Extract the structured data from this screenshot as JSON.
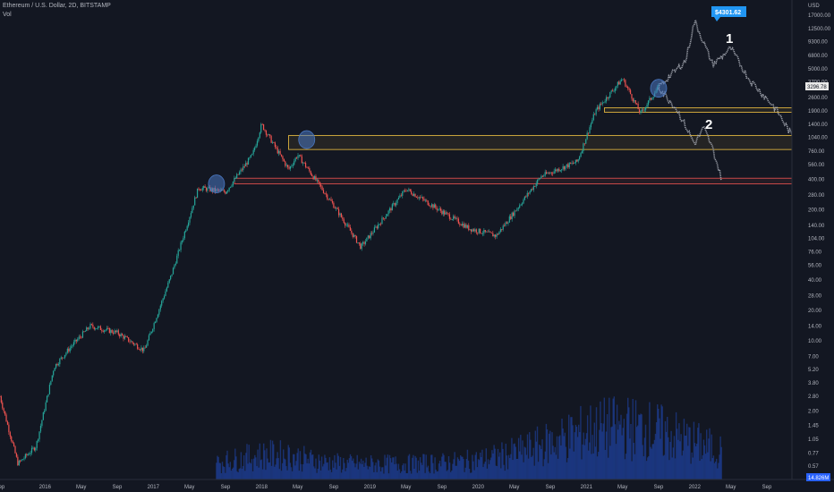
{
  "header": {
    "symbol_line": "Ethereum / U.S. Dollar, 2D, BITSTAMP",
    "indicator": "Vol"
  },
  "axis": {
    "currency": "USD",
    "y_ticks": [
      "17000.00",
      "12500.00",
      "9300.00",
      "6800.00",
      "5000.00",
      "3700.00",
      "2600.00",
      "1900.00",
      "1400.00",
      "1040.00",
      "760.00",
      "560.00",
      "400.00",
      "280.00",
      "200.00",
      "140.00",
      "104.00",
      "76.00",
      "56.00",
      "40.00",
      "28.00",
      "20.00",
      "14.00",
      "10.00",
      "7.00",
      "5.20",
      "3.80",
      "2.80",
      "2.00",
      "1.45",
      "1.05",
      "0.77",
      "0.57"
    ],
    "x_ticks": [
      "Sep",
      "2016",
      "May",
      "Sep",
      "2017",
      "May",
      "Sep",
      "2018",
      "May",
      "Sep",
      "2019",
      "May",
      "Sep",
      "2020",
      "May",
      "Sep",
      "2021",
      "May",
      "Sep",
      "2022",
      "May",
      "Sep"
    ]
  },
  "price_labels": {
    "ath": "$4301.62",
    "current": "3296.78",
    "volume": "14.826M"
  },
  "annotations": {
    "path1": "1",
    "path2": "2"
  },
  "colors": {
    "background": "#131722",
    "up": "#26a69a",
    "down": "#ef5350",
    "projection": "#b2b5be",
    "support_zone": "#f5c542",
    "resistance_zone": "#ef5350",
    "highlight": "#4a78c2",
    "label": "#2196f3"
  },
  "chart_data": {
    "type": "candlestick",
    "title": "Ethereum / U.S. Dollar, 2D, BITSTAMP",
    "scale": "log",
    "ylim": [
      0.5,
      20000
    ],
    "x": [
      "2015-08",
      "2016-01",
      "2016-05",
      "2016-09",
      "2017-01",
      "2017-05",
      "2017-09",
      "2018-01",
      "2018-05",
      "2018-09",
      "2019-01",
      "2019-05",
      "2019-09",
      "2020-01",
      "2020-05",
      "2020-09",
      "2021-01",
      "2021-05",
      "2021-09",
      "2022-01",
      "2022-05",
      "2022-09"
    ],
    "price_series": [
      {
        "date": "2015-08",
        "value": 2.8
      },
      {
        "date": "2015-10",
        "value": 0.6
      },
      {
        "date": "2015-12",
        "value": 0.9
      },
      {
        "date": "2016-02",
        "value": 5.5
      },
      {
        "date": "2016-04",
        "value": 9
      },
      {
        "date": "2016-06",
        "value": 14
      },
      {
        "date": "2016-09",
        "value": 12
      },
      {
        "date": "2016-12",
        "value": 8
      },
      {
        "date": "2017-03",
        "value": 45
      },
      {
        "date": "2017-06",
        "value": 330
      },
      {
        "date": "2017-09",
        "value": 300
      },
      {
        "date": "2017-12",
        "value": 700
      },
      {
        "date": "2018-01",
        "value": 1400
      },
      {
        "date": "2018-04",
        "value": 500
      },
      {
        "date": "2018-05",
        "value": 700
      },
      {
        "date": "2018-09",
        "value": 220
      },
      {
        "date": "2018-12",
        "value": 85
      },
      {
        "date": "2019-05",
        "value": 320
      },
      {
        "date": "2019-12",
        "value": 130
      },
      {
        "date": "2020-03",
        "value": 110
      },
      {
        "date": "2020-08",
        "value": 430
      },
      {
        "date": "2020-12",
        "value": 600
      },
      {
        "date": "2021-02",
        "value": 1900
      },
      {
        "date": "2021-05",
        "value": 4000
      },
      {
        "date": "2021-07",
        "value": 1800
      },
      {
        "date": "2021-09",
        "value": 3300
      }
    ],
    "projections": [
      {
        "name": "1",
        "points": [
          {
            "date": "2021-09",
            "value": 3300
          },
          {
            "date": "2021-12",
            "value": 6000
          },
          {
            "date": "2022-01",
            "value": 15000
          },
          {
            "date": "2022-03",
            "value": 5500
          },
          {
            "date": "2022-05",
            "value": 8000
          },
          {
            "date": "2022-07",
            "value": 4000
          },
          {
            "date": "2022-10",
            "value": 2000
          },
          {
            "date": "2022-12",
            "value": 1000
          }
        ]
      },
      {
        "name": "2",
        "points": [
          {
            "date": "2021-09",
            "value": 3300
          },
          {
            "date": "2021-11",
            "value": 2000
          },
          {
            "date": "2022-01",
            "value": 900
          },
          {
            "date": "2022-02",
            "value": 1300
          },
          {
            "date": "2022-03",
            "value": 800
          },
          {
            "date": "2022-04",
            "value": 400
          }
        ]
      }
    ],
    "zones": [
      {
        "kind": "support",
        "range": [
          1850,
          2050
        ],
        "from": "2021-03"
      },
      {
        "kind": "support",
        "range": [
          790,
          1090
        ],
        "from": "2018-04"
      },
      {
        "kind": "resistance",
        "range": [
          360,
          410
        ],
        "from": "2017-10"
      }
    ],
    "highlights": [
      {
        "date": "2017-08",
        "value": 360
      },
      {
        "date": "2018-06",
        "value": 990
      },
      {
        "date": "2021-09",
        "value": 3200
      }
    ],
    "volume_peak_date": "2021-05",
    "grid": false,
    "legend": "none"
  }
}
